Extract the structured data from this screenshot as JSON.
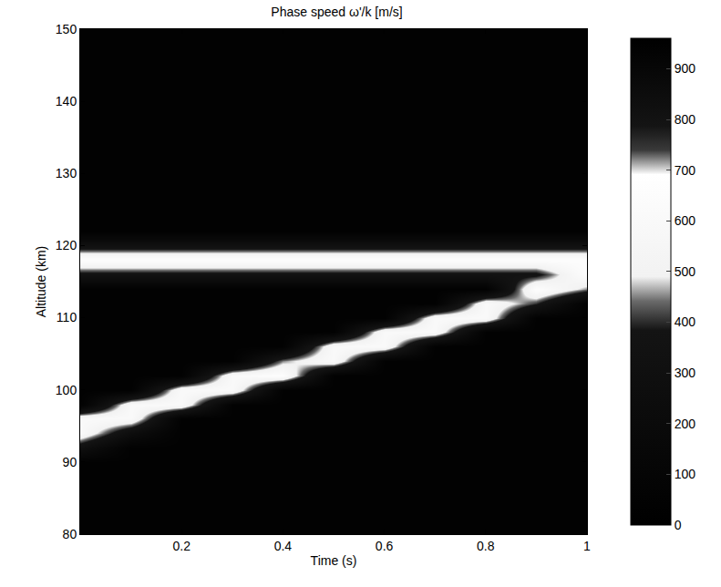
{
  "chart_data": {
    "type": "heatmap",
    "title": "Phase speed ω'/k [m/s]",
    "x_label": "Time (s)",
    "y_label": "Altitude (km)",
    "xlim": [
      0,
      1
    ],
    "xticks": [
      0.2,
      0.4,
      0.6,
      0.8,
      1
    ],
    "ylim": [
      80,
      150
    ],
    "yticks": [
      80,
      90,
      100,
      110,
      120,
      130,
      140,
      150
    ],
    "x": [
      0,
      0.1,
      0.2,
      0.3,
      0.4,
      0.5,
      0.6,
      0.7,
      0.8,
      0.9,
      1
    ],
    "y": [
      80,
      82,
      84,
      86,
      88,
      90,
      92,
      94,
      96,
      98,
      100,
      102,
      104,
      106,
      108,
      110,
      112,
      114,
      116,
      118,
      120,
      122,
      124,
      126,
      128,
      130,
      132,
      134,
      136,
      138,
      140,
      142,
      144,
      146,
      148,
      150
    ],
    "cells": [
      [
        40,
        40,
        40,
        40,
        40,
        40,
        40,
        40,
        40,
        40,
        40
      ],
      [
        40,
        40,
        40,
        40,
        40,
        40,
        40,
        40,
        40,
        40,
        40
      ],
      [
        40,
        40,
        40,
        40,
        40,
        40,
        40,
        40,
        40,
        40,
        40
      ],
      [
        40,
        40,
        40,
        40,
        40,
        40,
        40,
        40,
        40,
        40,
        40
      ],
      [
        40,
        40,
        40,
        40,
        40,
        40,
        40,
        40,
        40,
        40,
        40
      ],
      [
        40,
        40,
        40,
        40,
        40,
        40,
        40,
        40,
        40,
        40,
        40
      ],
      [
        300,
        40,
        40,
        40,
        40,
        40,
        40,
        40,
        40,
        40,
        40
      ],
      [
        600,
        250,
        40,
        40,
        40,
        40,
        40,
        40,
        40,
        40,
        40
      ],
      [
        600,
        600,
        40,
        40,
        40,
        40,
        40,
        40,
        40,
        40,
        40
      ],
      [
        40,
        600,
        600,
        40,
        40,
        40,
        40,
        40,
        40,
        40,
        40
      ],
      [
        40,
        40,
        600,
        600,
        40,
        40,
        40,
        40,
        40,
        40,
        40
      ],
      [
        40,
        40,
        40,
        600,
        650,
        40,
        40,
        40,
        40,
        40,
        40
      ],
      [
        40,
        40,
        40,
        40,
        450,
        600,
        40,
        40,
        40,
        40,
        40
      ],
      [
        40,
        40,
        40,
        40,
        40,
        600,
        600,
        40,
        40,
        40,
        40
      ],
      [
        40,
        40,
        40,
        40,
        40,
        40,
        600,
        600,
        40,
        40,
        40
      ],
      [
        40,
        40,
        40,
        40,
        40,
        40,
        40,
        600,
        600,
        40,
        40
      ],
      [
        40,
        40,
        40,
        40,
        40,
        40,
        40,
        40,
        600,
        400,
        40
      ],
      [
        40,
        40,
        40,
        40,
        40,
        40,
        40,
        40,
        40,
        650,
        450
      ],
      [
        350,
        350,
        350,
        350,
        350,
        350,
        350,
        350,
        350,
        350,
        650
      ],
      [
        650,
        650,
        650,
        650,
        650,
        650,
        650,
        650,
        650,
        650,
        650
      ],
      [
        300,
        300,
        300,
        300,
        300,
        300,
        300,
        300,
        300,
        300,
        300
      ],
      [
        40,
        40,
        40,
        40,
        40,
        40,
        40,
        40,
        40,
        40,
        40
      ],
      [
        40,
        40,
        40,
        40,
        40,
        40,
        40,
        40,
        40,
        40,
        40
      ],
      [
        40,
        40,
        40,
        40,
        40,
        40,
        40,
        40,
        40,
        40,
        40
      ],
      [
        40,
        40,
        40,
        40,
        40,
        40,
        40,
        40,
        40,
        40,
        40
      ],
      [
        40,
        40,
        40,
        40,
        40,
        40,
        40,
        40,
        40,
        40,
        40
      ],
      [
        40,
        40,
        40,
        40,
        40,
        40,
        40,
        40,
        40,
        40,
        40
      ],
      [
        40,
        40,
        40,
        40,
        40,
        40,
        40,
        40,
        40,
        40,
        40
      ],
      [
        40,
        40,
        40,
        40,
        40,
        40,
        40,
        40,
        40,
        40,
        40
      ],
      [
        40,
        40,
        40,
        40,
        40,
        40,
        40,
        40,
        40,
        40,
        40
      ],
      [
        40,
        40,
        40,
        40,
        40,
        40,
        40,
        40,
        40,
        40,
        40
      ],
      [
        40,
        40,
        40,
        40,
        40,
        40,
        40,
        40,
        40,
        40,
        40
      ],
      [
        40,
        40,
        40,
        40,
        40,
        40,
        40,
        40,
        40,
        40,
        40
      ],
      [
        40,
        40,
        40,
        40,
        40,
        40,
        40,
        40,
        40,
        40,
        40
      ],
      [
        40,
        40,
        40,
        40,
        40,
        40,
        40,
        40,
        40,
        40,
        40
      ],
      [
        40,
        40,
        40,
        40,
        40,
        40,
        40,
        40,
        40,
        40,
        40
      ]
    ],
    "colorbar_range": [
      0,
      960
    ],
    "colorbar_ticks": [
      0,
      100,
      200,
      300,
      400,
      500,
      600,
      700,
      800,
      900
    ]
  }
}
